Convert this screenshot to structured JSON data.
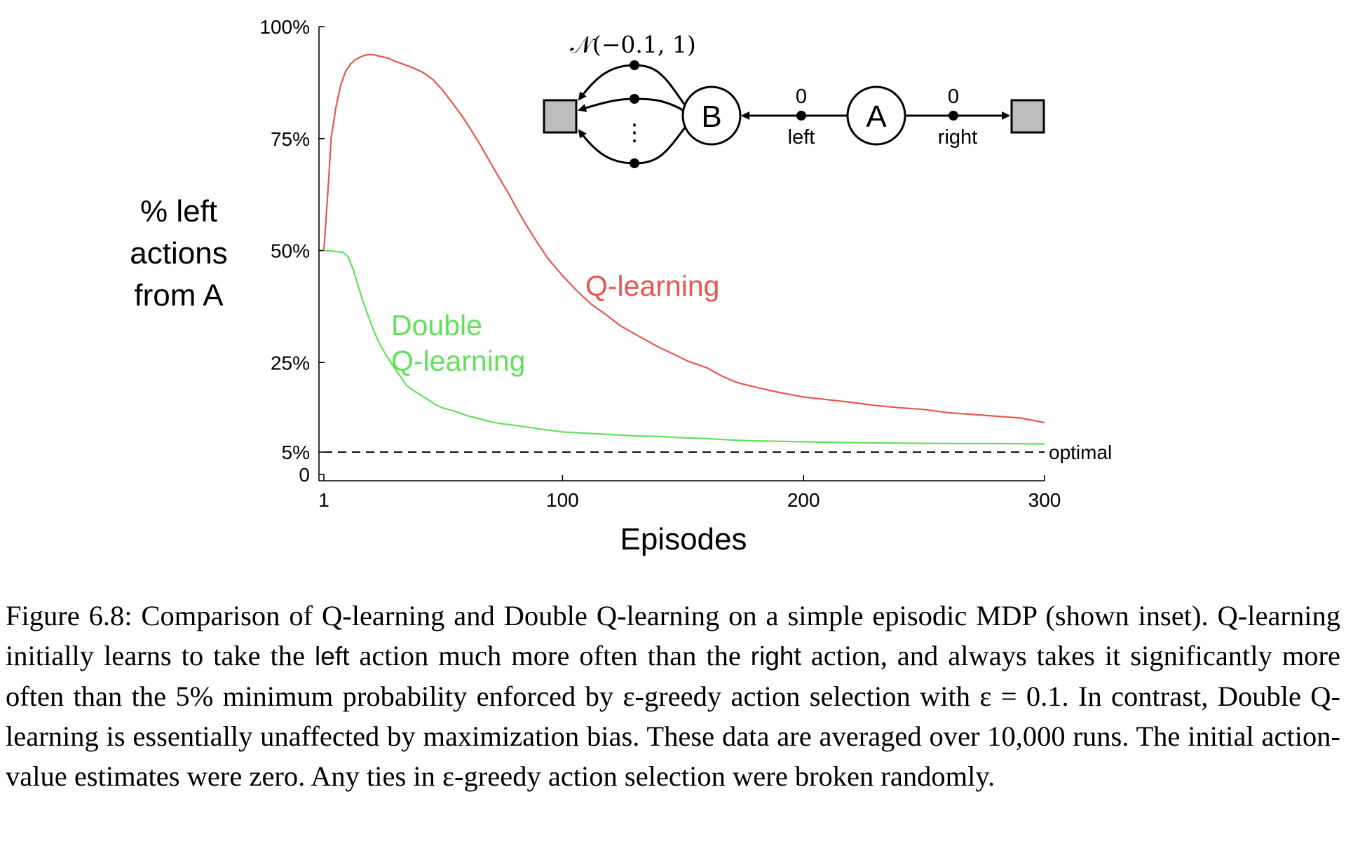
{
  "chart_data": {
    "type": "line",
    "xlabel": "Episodes",
    "ylabel_lines": [
      "% left",
      "actions",
      "from A"
    ],
    "xlim": [
      1,
      300
    ],
    "ylim": [
      0,
      100
    ],
    "x_ticks": [
      {
        "value": 1,
        "label": "1"
      },
      {
        "value": 100,
        "label": "100"
      },
      {
        "value": 200,
        "label": "200"
      },
      {
        "value": 300,
        "label": "300"
      }
    ],
    "y_ticks": [
      {
        "value": 0,
        "label": "0"
      },
      {
        "value": 5,
        "label": "5%"
      },
      {
        "value": 25,
        "label": "25%"
      },
      {
        "value": 50,
        "label": "50%"
      },
      {
        "value": 75,
        "label": "75%"
      },
      {
        "value": 100,
        "label": "100%"
      }
    ],
    "grid": false,
    "series": [
      {
        "name": "Q-learning",
        "color": "#e8564e",
        "points": [
          [
            1,
            50
          ],
          [
            3,
            66
          ],
          [
            4,
            75
          ],
          [
            6,
            82
          ],
          [
            8,
            87
          ],
          [
            10,
            90
          ],
          [
            12,
            91.6
          ],
          [
            14,
            92.6
          ],
          [
            16,
            93.2
          ],
          [
            18,
            93.6
          ],
          [
            20,
            93.8
          ],
          [
            22,
            93.7
          ],
          [
            24,
            93.4
          ],
          [
            26,
            93.2
          ],
          [
            28,
            92.9
          ],
          [
            30,
            92.4
          ],
          [
            34,
            91.6
          ],
          [
            38,
            90.8
          ],
          [
            42,
            89.8
          ],
          [
            46,
            88.3
          ],
          [
            50,
            86
          ],
          [
            54,
            83.2
          ],
          [
            58,
            80.3
          ],
          [
            62,
            77
          ],
          [
            66,
            73.5
          ],
          [
            70,
            69.7
          ],
          [
            74,
            66
          ],
          [
            78,
            62.4
          ],
          [
            82,
            58.4
          ],
          [
            86,
            54.8
          ],
          [
            90,
            51.4
          ],
          [
            94,
            48.2
          ],
          [
            100,
            44.4
          ],
          [
            106,
            41
          ],
          [
            112,
            38
          ],
          [
            118,
            35.7
          ],
          [
            124,
            33.2
          ],
          [
            130,
            31.4
          ],
          [
            136,
            29.6
          ],
          [
            140,
            28.4
          ],
          [
            146,
            26.9
          ],
          [
            152,
            25.3
          ],
          [
            160,
            23.8
          ],
          [
            166,
            22
          ],
          [
            172,
            20.6
          ],
          [
            180,
            19.5
          ],
          [
            190,
            18.3
          ],
          [
            200,
            17.3
          ],
          [
            210,
            16.7
          ],
          [
            220,
            16.1
          ],
          [
            230,
            15.4
          ],
          [
            240,
            14.9
          ],
          [
            250,
            14.5
          ],
          [
            260,
            13.8
          ],
          [
            270,
            13.4
          ],
          [
            280,
            13
          ],
          [
            290,
            12.6
          ],
          [
            300,
            11.6
          ]
        ]
      },
      {
        "name": "Double\nQ-learning",
        "color": "#62df5b",
        "points": [
          [
            1,
            50
          ],
          [
            3,
            50
          ],
          [
            6,
            49.8
          ],
          [
            9,
            49.6
          ],
          [
            11,
            48.6
          ],
          [
            13,
            46
          ],
          [
            15,
            42.5
          ],
          [
            17,
            39
          ],
          [
            19,
            36
          ],
          [
            21,
            33
          ],
          [
            23,
            30.5
          ],
          [
            25,
            28.3
          ],
          [
            27,
            26.5
          ],
          [
            29,
            24.8
          ],
          [
            31,
            23.2
          ],
          [
            33,
            21.7
          ],
          [
            35,
            20
          ],
          [
            38,
            18.8
          ],
          [
            41,
            17.8
          ],
          [
            44,
            16.8
          ],
          [
            47,
            15.7
          ],
          [
            50,
            14.9
          ],
          [
            55,
            14.2
          ],
          [
            60,
            13.2
          ],
          [
            65,
            12.5
          ],
          [
            70,
            11.8
          ],
          [
            75,
            11.3
          ],
          [
            80,
            11
          ],
          [
            90,
            10.2
          ],
          [
            100,
            9.5
          ],
          [
            110,
            9.2
          ],
          [
            120,
            8.9
          ],
          [
            130,
            8.6
          ],
          [
            140,
            8.5
          ],
          [
            150,
            8.2
          ],
          [
            160,
            8
          ],
          [
            170,
            7.7
          ],
          [
            180,
            7.5
          ],
          [
            190,
            7.4
          ],
          [
            200,
            7.3
          ],
          [
            220,
            7.1
          ],
          [
            240,
            7
          ],
          [
            260,
            6.9
          ],
          [
            280,
            6.9
          ],
          [
            300,
            6.8
          ]
        ]
      }
    ],
    "reference_line": {
      "y": 5,
      "label": "optimal",
      "style": "dashed"
    }
  },
  "inset": {
    "node_a": "A",
    "node_b": "B",
    "left_reward": "0",
    "left_label": "left",
    "right_reward": "0",
    "right_label": "right",
    "b_distribution": "𝒩(−0.1, 1)",
    "ellipsis": "⋮"
  },
  "caption": {
    "head": "Figure 6.8:  Comparison of Q-learning and Double Q-learning on a simple episodic MDP (shown inset).  Q-learning initially learns to take the ",
    "word_left": "left",
    "mid1": " action much more often than the ",
    "word_right": "right",
    "tail": " action, and always takes it significantly more often than the 5% minimum probability enforced by ε-greedy action selection with ε = 0.1.  In contrast, Double Q-learning is essentially unaffected by maximization bias.  These data are averaged over 10,000 runs.  The initial action-value estimates were zero. Any ties in ε-greedy action selection were broken randomly."
  }
}
